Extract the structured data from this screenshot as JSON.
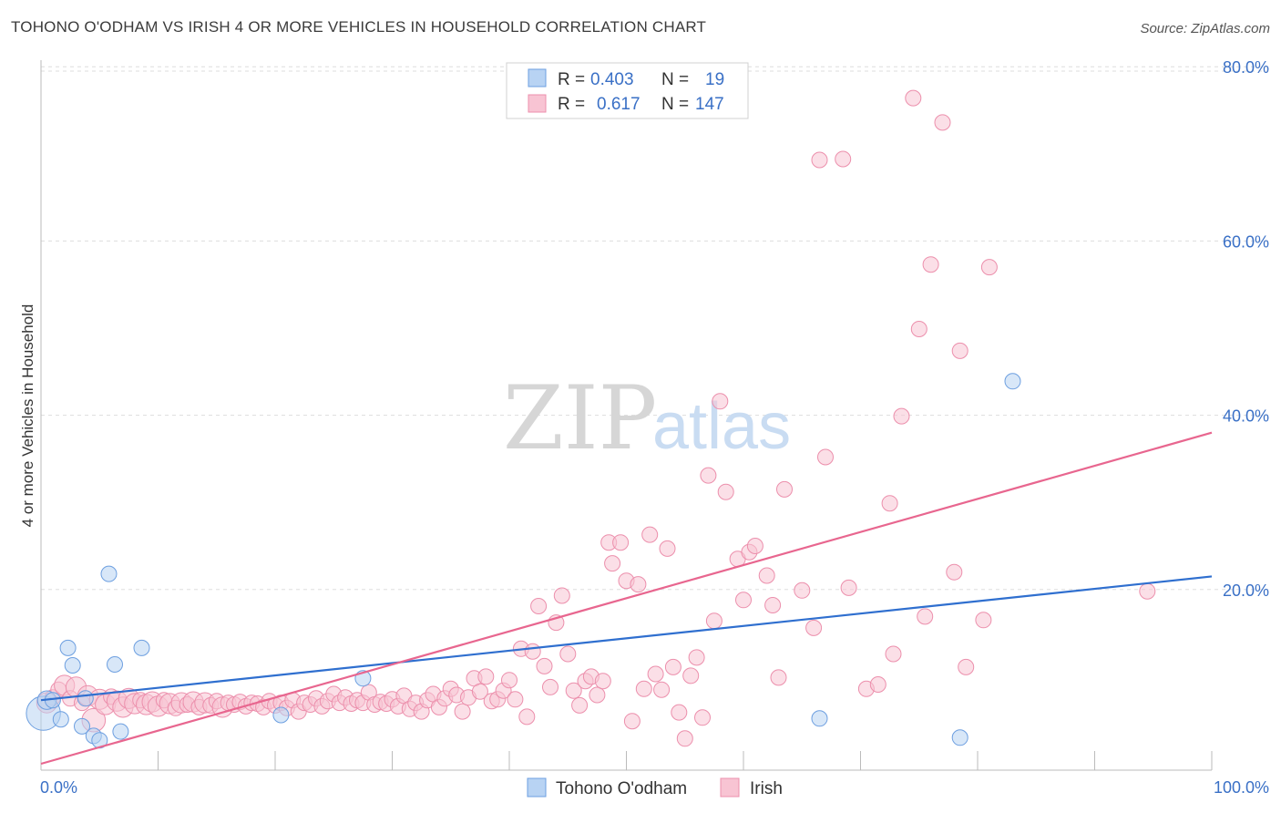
{
  "title": "TOHONO O'ODHAM VS IRISH 4 OR MORE VEHICLES IN HOUSEHOLD CORRELATION CHART",
  "source": "Source: ZipAtlas.com",
  "watermark": {
    "zip": "ZIP",
    "atlas": "atlas"
  },
  "colors": {
    "tohono_fill": "#b8d3f3",
    "tohono_stroke": "#6d9fe0",
    "tohono_line": "#2f6fcf",
    "irish_fill": "#f8c4d3",
    "irish_stroke": "#ec8fac",
    "irish_line": "#e8668f",
    "grid": "#dddddd",
    "tick_text": "#3a70c6"
  },
  "legend": {
    "rows": [
      {
        "r_label": "R =",
        "r_value": "0.403",
        "n_label": "N =",
        "n_value": "19"
      },
      {
        "r_label": "R =",
        "r_value": "0.617",
        "n_label": "N =",
        "n_value": "147"
      }
    ]
  },
  "chart_data": {
    "type": "scatter",
    "title": "TOHONO O'ODHAM VS IRISH 4 OR MORE VEHICLES IN HOUSEHOLD CORRELATION CHART",
    "xlabel": "",
    "ylabel": "4 or more Vehicles in Household",
    "x_tick_labels": [
      "0.0%",
      "100.0%"
    ],
    "y_tick_labels": [
      "20.0%",
      "40.0%",
      "60.0%",
      "80.0%"
    ],
    "y_ticks": [
      20,
      40,
      60,
      80
    ],
    "xlim": [
      0,
      100
    ],
    "ylim": [
      0,
      82
    ],
    "grid": true,
    "legend_position": "top-center",
    "series": [
      {
        "name": "Tohono O'odham",
        "r": 0.403,
        "n": 19,
        "trend": {
          "x": [
            0,
            100
          ],
          "y": [
            7.3,
            21.5
          ]
        },
        "points": [
          [
            0.2,
            5.8,
            2.2
          ],
          [
            0.5,
            7.3,
            1.2
          ],
          [
            1.0,
            7.3,
            1.0
          ],
          [
            1.7,
            5.1,
            1.0
          ],
          [
            2.3,
            13.3,
            1.0
          ],
          [
            2.7,
            11.3,
            1.0
          ],
          [
            3.5,
            4.3,
            1.0
          ],
          [
            3.8,
            7.5,
            1.0
          ],
          [
            4.5,
            3.2,
            1.0
          ],
          [
            5.0,
            2.7,
            1.0
          ],
          [
            5.8,
            21.8,
            1.0
          ],
          [
            6.3,
            11.4,
            1.0
          ],
          [
            6.8,
            3.7,
            1.0
          ],
          [
            8.6,
            13.3,
            1.0
          ],
          [
            20.5,
            5.6,
            1.0
          ],
          [
            27.5,
            9.8,
            1.0
          ],
          [
            66.5,
            5.2,
            1.0
          ],
          [
            78.5,
            3.0,
            1.0
          ],
          [
            83.0,
            43.9,
            1.0
          ]
        ]
      },
      {
        "name": "Irish",
        "r": 0.617,
        "n": 147,
        "trend": {
          "x": [
            0,
            100
          ],
          "y": [
            0,
            38.0
          ]
        },
        "points": [
          [
            0.5,
            7.0,
            1.3
          ],
          [
            1.0,
            7.6,
            1.0
          ],
          [
            1.5,
            8.5,
            1.0
          ],
          [
            2.0,
            9.0,
            1.3
          ],
          [
            2.5,
            7.5,
            1.0
          ],
          [
            3.0,
            8.8,
            1.3
          ],
          [
            3.5,
            7.0,
            1.0
          ],
          [
            4.0,
            7.8,
            1.3
          ],
          [
            4.5,
            5.0,
            1.5
          ],
          [
            5.0,
            7.4,
            1.3
          ],
          [
            5.5,
            6.8,
            1.3
          ],
          [
            6.0,
            7.7,
            1.0
          ],
          [
            6.5,
            7.2,
            1.3
          ],
          [
            7.0,
            6.5,
            1.3
          ],
          [
            7.5,
            7.5,
            1.3
          ],
          [
            8.0,
            6.9,
            1.3
          ],
          [
            8.5,
            7.3,
            1.0
          ],
          [
            9.0,
            6.8,
            1.3
          ],
          [
            9.5,
            7.1,
            1.3
          ],
          [
            10.0,
            6.6,
            1.3
          ],
          [
            10.5,
            7.3,
            1.0
          ],
          [
            11.0,
            6.9,
            1.3
          ],
          [
            11.5,
            6.4,
            1.0
          ],
          [
            12.0,
            7.0,
            1.3
          ],
          [
            12.5,
            6.8,
            1.0
          ],
          [
            13.0,
            7.1,
            1.3
          ],
          [
            13.5,
            6.5,
            1.0
          ],
          [
            14.0,
            7.0,
            1.3
          ],
          [
            14.5,
            6.7,
            1.0
          ],
          [
            15.0,
            7.2,
            1.0
          ],
          [
            15.5,
            6.5,
            1.3
          ],
          [
            16.0,
            7.0,
            1.0
          ],
          [
            16.5,
            6.8,
            1.0
          ],
          [
            17.0,
            7.1,
            1.0
          ],
          [
            17.5,
            6.6,
            1.0
          ],
          [
            18.0,
            7.0,
            1.0
          ],
          [
            18.5,
            6.9,
            1.0
          ],
          [
            19.0,
            6.5,
            1.0
          ],
          [
            19.5,
            7.2,
            1.0
          ],
          [
            20.0,
            6.7,
            1.0
          ],
          [
            20.5,
            7.0,
            1.0
          ],
          [
            21.0,
            6.4,
            1.0
          ],
          [
            21.5,
            7.3,
            1.0
          ],
          [
            22.0,
            6.0,
            1.0
          ],
          [
            22.5,
            7.0,
            1.0
          ],
          [
            23.0,
            6.8,
            1.0
          ],
          [
            23.5,
            7.5,
            1.0
          ],
          [
            24.0,
            6.6,
            1.0
          ],
          [
            24.5,
            7.2,
            1.0
          ],
          [
            25.0,
            8.0,
            1.0
          ],
          [
            25.5,
            7.0,
            1.0
          ],
          [
            26.0,
            7.6,
            1.0
          ],
          [
            26.5,
            6.9,
            1.0
          ],
          [
            27.0,
            7.3,
            1.0
          ],
          [
            27.5,
            7.0,
            1.0
          ],
          [
            28.0,
            8.2,
            1.0
          ],
          [
            28.5,
            6.8,
            1.0
          ],
          [
            29.0,
            7.1,
            1.0
          ],
          [
            29.5,
            6.9,
            1.0
          ],
          [
            30.0,
            7.4,
            1.0
          ],
          [
            30.5,
            6.6,
            1.0
          ],
          [
            31.0,
            7.8,
            1.0
          ],
          [
            31.5,
            6.3,
            1.0
          ],
          [
            32.0,
            7.0,
            1.0
          ],
          [
            32.5,
            6.0,
            1.0
          ],
          [
            33.0,
            7.3,
            1.0
          ],
          [
            33.5,
            8.0,
            1.0
          ],
          [
            34.0,
            6.5,
            1.0
          ],
          [
            34.5,
            7.5,
            1.0
          ],
          [
            35.0,
            8.6,
            1.0
          ],
          [
            35.5,
            7.9,
            1.0
          ],
          [
            36.0,
            6.0,
            1.0
          ],
          [
            36.5,
            7.6,
            1.0
          ],
          [
            37.0,
            9.8,
            1.0
          ],
          [
            37.5,
            8.3,
            1.0
          ],
          [
            38.0,
            10.0,
            1.0
          ],
          [
            38.5,
            7.2,
            1.0
          ],
          [
            39.0,
            7.4,
            1.0
          ],
          [
            39.5,
            8.4,
            1.0
          ],
          [
            40.0,
            9.6,
            1.0
          ],
          [
            40.5,
            7.4,
            1.0
          ],
          [
            41.0,
            13.2,
            1.0
          ],
          [
            41.5,
            5.4,
            1.0
          ],
          [
            42.0,
            12.9,
            1.0
          ],
          [
            42.5,
            18.1,
            1.0
          ],
          [
            43.0,
            11.2,
            1.0
          ],
          [
            43.5,
            8.8,
            1.0
          ],
          [
            44.0,
            16.2,
            1.0
          ],
          [
            44.5,
            19.3,
            1.0
          ],
          [
            45.0,
            12.6,
            1.0
          ],
          [
            45.5,
            8.4,
            1.0
          ],
          [
            46.0,
            6.7,
            1.0
          ],
          [
            46.5,
            9.5,
            1.0
          ],
          [
            47.0,
            10.0,
            1.0
          ],
          [
            47.5,
            7.9,
            1.0
          ],
          [
            48.0,
            9.5,
            1.0
          ],
          [
            48.5,
            25.4,
            1.0
          ],
          [
            48.8,
            23.0,
            1.0
          ],
          [
            49.5,
            25.4,
            1.0
          ],
          [
            50.0,
            21.0,
            1.0
          ],
          [
            50.5,
            4.9,
            1.0
          ],
          [
            51.0,
            20.6,
            1.0
          ],
          [
            51.5,
            8.6,
            1.0
          ],
          [
            52.0,
            26.3,
            1.0
          ],
          [
            52.5,
            10.3,
            1.0
          ],
          [
            53.0,
            8.5,
            1.0
          ],
          [
            53.5,
            24.7,
            1.0
          ],
          [
            54.0,
            11.1,
            1.0
          ],
          [
            54.5,
            5.9,
            1.0
          ],
          [
            55.0,
            2.9,
            1.0
          ],
          [
            55.5,
            10.1,
            1.0
          ],
          [
            56.0,
            12.2,
            1.0
          ],
          [
            56.5,
            5.3,
            1.0
          ],
          [
            57.0,
            33.1,
            1.0
          ],
          [
            57.5,
            16.4,
            1.0
          ],
          [
            58.0,
            41.6,
            1.0
          ],
          [
            58.5,
            31.2,
            1.0
          ],
          [
            59.5,
            23.5,
            1.0
          ],
          [
            60.0,
            18.8,
            1.0
          ],
          [
            60.5,
            24.3,
            1.0
          ],
          [
            61.0,
            25.0,
            1.0
          ],
          [
            62.0,
            21.6,
            1.0
          ],
          [
            62.5,
            18.2,
            1.0
          ],
          [
            63.0,
            9.9,
            1.0
          ],
          [
            63.5,
            31.5,
            1.0
          ],
          [
            65.0,
            19.9,
            1.0
          ],
          [
            66.0,
            15.6,
            1.0
          ],
          [
            66.5,
            69.3,
            1.0
          ],
          [
            67.0,
            35.2,
            1.0
          ],
          [
            68.5,
            69.4,
            1.0
          ],
          [
            69.0,
            20.2,
            1.0
          ],
          [
            70.5,
            8.6,
            1.0
          ],
          [
            71.5,
            9.1,
            1.0
          ],
          [
            72.5,
            29.9,
            1.0
          ],
          [
            72.8,
            12.6,
            1.0
          ],
          [
            73.5,
            39.9,
            1.0
          ],
          [
            74.5,
            76.4,
            1.0
          ],
          [
            75.0,
            49.9,
            1.0
          ],
          [
            75.5,
            16.9,
            1.0
          ],
          [
            76.0,
            57.3,
            1.0
          ],
          [
            77.0,
            73.6,
            1.0
          ],
          [
            78.0,
            22.0,
            1.0
          ],
          [
            78.5,
            47.4,
            1.0
          ],
          [
            79.0,
            11.1,
            1.0
          ],
          [
            80.5,
            16.5,
            1.0
          ],
          [
            81.0,
            57.0,
            1.0
          ],
          [
            94.5,
            19.8,
            1.0
          ]
        ]
      }
    ]
  }
}
